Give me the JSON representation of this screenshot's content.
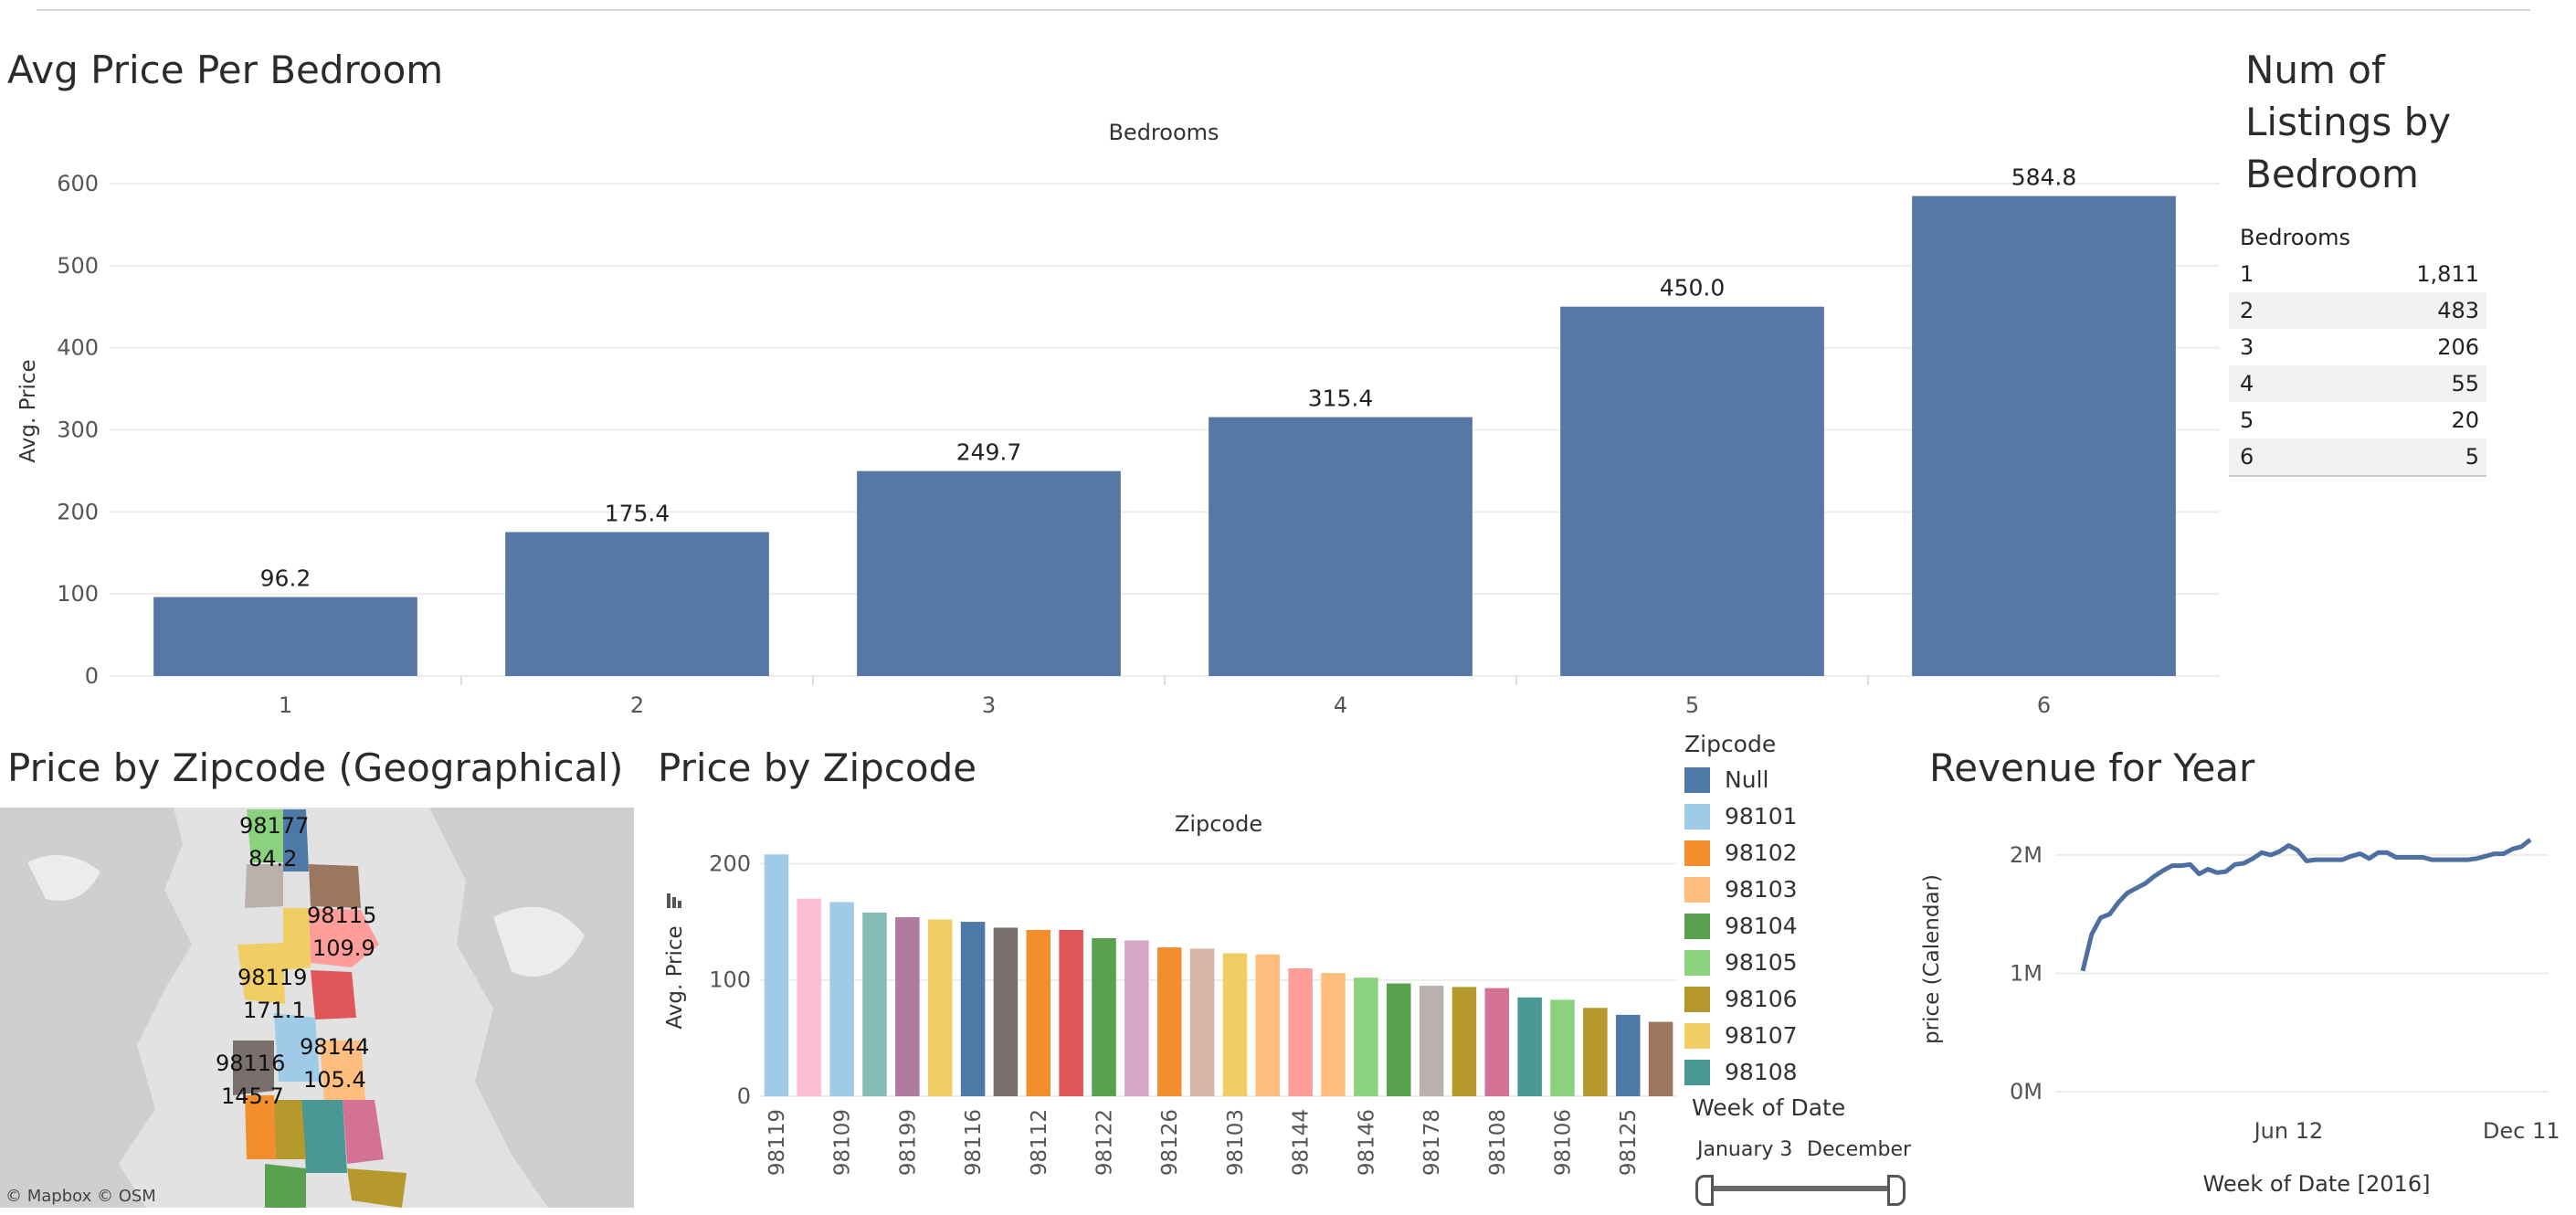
{
  "dashboard": {
    "bar_title": "Avg Price Per Bedroom",
    "table_title_lines": [
      "Num of",
      "Listings by",
      "Bedroom"
    ],
    "map_title": "Price by Zipcode (Geographical)",
    "zip_title": "Price by Zipcode",
    "revenue_title": "Revenue for Year"
  },
  "listings_table": {
    "header": "Bedrooms",
    "rows": [
      {
        "bedrooms": "1",
        "count": "1,811"
      },
      {
        "bedrooms": "2",
        "count": "483"
      },
      {
        "bedrooms": "3",
        "count": "206"
      },
      {
        "bedrooms": "4",
        "count": "55"
      },
      {
        "bedrooms": "5",
        "count": "20"
      },
      {
        "bedrooms": "6",
        "count": "5"
      }
    ]
  },
  "map": {
    "credits": "© Mapbox  © OSM",
    "labels": [
      {
        "zip": "98177",
        "value": "84.2"
      },
      {
        "zip": "98115",
        "value": "109.9"
      },
      {
        "zip": "98119",
        "value": "171.1"
      },
      {
        "zip": "98144",
        "value": "105.4"
      },
      {
        "zip": "98116",
        "value": "145.7"
      }
    ]
  },
  "legend": {
    "title": "Zipcode",
    "items": [
      {
        "label": "Null",
        "color": "#4e79a7"
      },
      {
        "label": "98101",
        "color": "#a0cbe8"
      },
      {
        "label": "98102",
        "color": "#f28e2b"
      },
      {
        "label": "98103",
        "color": "#ffbe7d"
      },
      {
        "label": "98104",
        "color": "#59a14f"
      },
      {
        "label": "98105",
        "color": "#8cd17d"
      },
      {
        "label": "98106",
        "color": "#b6992d"
      },
      {
        "label": "98107",
        "color": "#f1ce63"
      },
      {
        "label": "98108",
        "color": "#499894"
      }
    ]
  },
  "filter": {
    "title": "Week of Date",
    "start": "January 3",
    "end": "December"
  },
  "chart_data": [
    {
      "type": "bar",
      "title": "Avg Price Per Bedroom",
      "xlabel": "Bedrooms",
      "ylabel": "Avg. Price",
      "categories": [
        "1",
        "2",
        "3",
        "4",
        "5",
        "6"
      ],
      "values": [
        96.2,
        175.4,
        249.7,
        315.4,
        450.0,
        584.8
      ],
      "data_labels": [
        "96.2",
        "175.4",
        "249.7",
        "315.4",
        "450.0",
        "584.8"
      ],
      "y_ticks": [
        0,
        100,
        200,
        300,
        400,
        500,
        600
      ],
      "ylim": [
        0,
        640
      ],
      "color": "#5778a4",
      "grid": true
    },
    {
      "type": "bar",
      "title": "Price by Zipcode",
      "xlabel": "Zipcode",
      "ylabel": "Avg. Price",
      "categories": [
        "98119",
        "",
        "98109",
        "",
        "98199",
        "",
        "98116",
        "",
        "98112",
        "",
        "98122",
        "",
        "98126",
        "",
        "98103",
        "",
        "98144",
        "",
        "98146",
        "",
        "98178",
        "",
        "98108",
        "",
        "98106",
        "",
        "98125",
        ""
      ],
      "values": [
        208,
        170,
        167,
        158,
        154,
        152,
        150,
        145,
        143,
        143,
        136,
        134,
        128,
        127,
        123,
        122,
        110,
        106,
        102,
        97,
        95,
        94,
        93,
        85,
        83,
        76,
        70,
        64
      ],
      "colors": [
        "#a0cbe8",
        "#fabfd2",
        "#a0cbe8",
        "#86bcb6",
        "#b07aa1",
        "#f1ce63",
        "#4e79a7",
        "#79706e",
        "#f28e2b",
        "#e15759",
        "#59a14f",
        "#d4a6c8",
        "#f28e2b",
        "#d7b5a6",
        "#f1ce63",
        "#ffbe7d",
        "#ff9d9a",
        "#ffbe7d",
        "#8cd17d",
        "#59a14f",
        "#bab0ac",
        "#b6992d",
        "#d37295",
        "#499894",
        "#8cd17d",
        "#b6992d",
        "#4e79a7",
        "#9d7660"
      ],
      "y_ticks": [
        0,
        100,
        200
      ],
      "ylim": [
        0,
        220
      ],
      "grid": true
    },
    {
      "type": "line",
      "title": "Revenue for Year",
      "xlabel": "Week of Date [2016]",
      "ylabel": "price (Calendar)",
      "x_tick_labels": [
        "Jun 12",
        "Dec 11"
      ],
      "x_tick_weeks": [
        23,
        49
      ],
      "y_ticks": [
        "0M",
        "1M",
        "2M"
      ],
      "y_tick_values": [
        0,
        1000000,
        2000000
      ],
      "ylim": [
        0,
        2200000
      ],
      "x_weeks": [
        0,
        1,
        2,
        3,
        4,
        5,
        6,
        7,
        8,
        9,
        10,
        11,
        12,
        13,
        14,
        15,
        16,
        17,
        18,
        19,
        20,
        21,
        22,
        23,
        24,
        25,
        26,
        27,
        28,
        29,
        30,
        31,
        32,
        33,
        34,
        35,
        36,
        37,
        38,
        39,
        40,
        41,
        42,
        43,
        44,
        45,
        46,
        47,
        48,
        49,
        50
      ],
      "values": [
        1020000,
        1330000,
        1470000,
        1500000,
        1600000,
        1680000,
        1720000,
        1760000,
        1820000,
        1870000,
        1910000,
        1910000,
        1920000,
        1840000,
        1880000,
        1850000,
        1860000,
        1920000,
        1930000,
        1970000,
        2020000,
        2000000,
        2030000,
        2080000,
        2040000,
        1950000,
        1960000,
        1960000,
        1960000,
        1960000,
        1990000,
        2010000,
        1970000,
        2020000,
        2020000,
        1980000,
        1980000,
        1980000,
        1980000,
        1960000,
        1960000,
        1960000,
        1960000,
        1960000,
        1970000,
        1990000,
        2010000,
        2010000,
        2050000,
        2070000,
        2130000
      ],
      "color": "#4e6fa0",
      "grid": true
    }
  ]
}
